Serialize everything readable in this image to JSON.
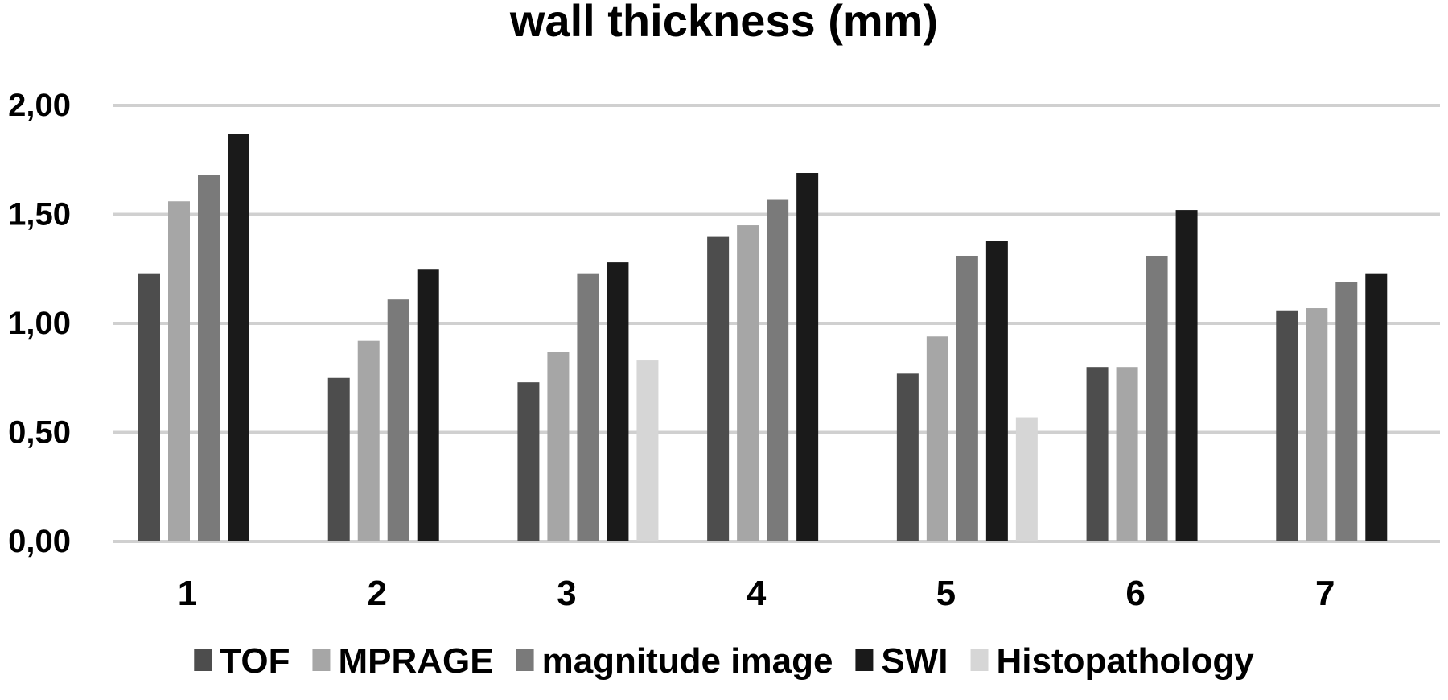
{
  "chart_data": {
    "type": "bar",
    "title": "wall thickness (mm)",
    "xlabel": "",
    "ylabel": "",
    "categories": [
      "1",
      "2",
      "3",
      "4",
      "5",
      "6",
      "7"
    ],
    "ylim": [
      0,
      2
    ],
    "yticks": [
      {
        "value": 0,
        "label": "0,00"
      },
      {
        "value": 0.5,
        "label": "0,50"
      },
      {
        "value": 1,
        "label": "1,00"
      },
      {
        "value": 1.5,
        "label": "1,50"
      },
      {
        "value": 2,
        "label": "2,00"
      }
    ],
    "grid": true,
    "legend_position": "bottom",
    "series": [
      {
        "name": "TOF",
        "color": "#4d4d4d",
        "values": [
          1.23,
          0.75,
          0.73,
          1.4,
          0.77,
          0.8,
          1.06
        ]
      },
      {
        "name": "MPRAGE",
        "color": "#a6a6a6",
        "values": [
          1.56,
          0.92,
          0.87,
          1.45,
          0.94,
          0.8,
          1.07
        ]
      },
      {
        "name": "magnitude image",
        "color": "#7a7a7a",
        "values": [
          1.68,
          1.11,
          1.23,
          1.57,
          1.31,
          1.31,
          1.19
        ]
      },
      {
        "name": "SWI",
        "color": "#1a1a1a",
        "values": [
          1.87,
          1.25,
          1.28,
          1.69,
          1.38,
          1.52,
          1.23
        ]
      },
      {
        "name": "Histopathology",
        "color": "#d6d6d6",
        "values": [
          null,
          null,
          0.83,
          null,
          0.57,
          null,
          null
        ]
      }
    ]
  }
}
